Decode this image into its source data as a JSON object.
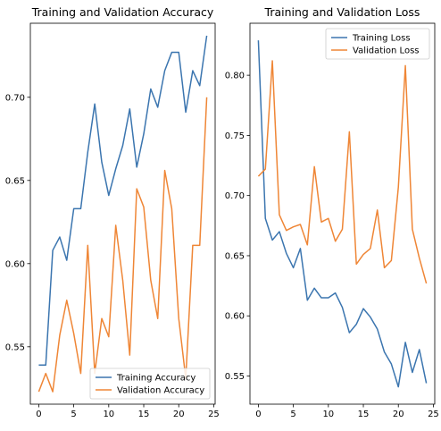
{
  "chart_data": [
    {
      "type": "line",
      "title": "Training and Validation Accuracy",
      "xlabel": "",
      "ylabel": "",
      "xlim": [
        -1.2,
        25.2
      ],
      "ylim": [
        0.5155,
        0.7445
      ],
      "xticks": [
        0,
        5,
        10,
        15,
        20,
        25
      ],
      "yticks": [
        0.55,
        0.6,
        0.65,
        0.7
      ],
      "ytick_labels": [
        "0.55",
        "0.60",
        "0.65",
        "0.70"
      ],
      "grid": false,
      "legend_position": "lower-right",
      "x": [
        0,
        1,
        2,
        3,
        4,
        5,
        6,
        7,
        8,
        9,
        10,
        11,
        12,
        13,
        14,
        15,
        16,
        17,
        18,
        19,
        20,
        21,
        22,
        23,
        24
      ],
      "series": [
        {
          "name": "Training Accuracy",
          "color": "#3b75af",
          "values": [
            0.539,
            0.539,
            0.608,
            0.616,
            0.602,
            0.633,
            0.633,
            0.667,
            0.696,
            0.661,
            0.641,
            0.657,
            0.671,
            0.693,
            0.658,
            0.678,
            0.705,
            0.694,
            0.716,
            0.727,
            0.727,
            0.691,
            0.716,
            0.707,
            0.737
          ]
        },
        {
          "name": "Validation Accuracy",
          "color": "#ef8636",
          "values": [
            0.523,
            0.534,
            0.523,
            0.557,
            0.578,
            0.558,
            0.534,
            0.611,
            0.534,
            0.567,
            0.556,
            0.623,
            0.59,
            0.545,
            0.645,
            0.634,
            0.59,
            0.567,
            0.656,
            0.633,
            0.567,
            0.531,
            0.611,
            0.611,
            0.7
          ]
        }
      ]
    },
    {
      "type": "line",
      "title": "Training and Validation Loss",
      "xlabel": "",
      "ylabel": "",
      "xlim": [
        -1.2,
        25.2
      ],
      "ylim": [
        0.5266,
        0.8432
      ],
      "xticks": [
        0,
        5,
        10,
        15,
        20,
        25
      ],
      "yticks": [
        0.55,
        0.6,
        0.65,
        0.7,
        0.75,
        0.8
      ],
      "ytick_labels": [
        "0.55",
        "0.60",
        "0.65",
        "0.70",
        "0.75",
        "0.80"
      ],
      "grid": false,
      "legend_position": "top-right",
      "x": [
        0,
        1,
        2,
        3,
        4,
        5,
        6,
        7,
        8,
        9,
        10,
        11,
        12,
        13,
        14,
        15,
        16,
        17,
        18,
        19,
        20,
        21,
        22,
        23,
        24
      ],
      "series": [
        {
          "name": "Training Loss",
          "color": "#3b75af",
          "values": [
            0.829,
            0.681,
            0.663,
            0.67,
            0.652,
            0.64,
            0.656,
            0.613,
            0.623,
            0.615,
            0.615,
            0.619,
            0.607,
            0.586,
            0.593,
            0.606,
            0.599,
            0.589,
            0.57,
            0.56,
            0.541,
            0.578,
            0.553,
            0.572,
            0.544
          ]
        },
        {
          "name": "Validation Loss",
          "color": "#ef8636",
          "values": [
            0.716,
            0.722,
            0.812,
            0.684,
            0.671,
            0.674,
            0.676,
            0.659,
            0.724,
            0.678,
            0.681,
            0.662,
            0.672,
            0.753,
            0.643,
            0.651,
            0.656,
            0.688,
            0.64,
            0.646,
            0.707,
            0.808,
            0.672,
            0.648,
            0.627
          ]
        }
      ]
    }
  ]
}
